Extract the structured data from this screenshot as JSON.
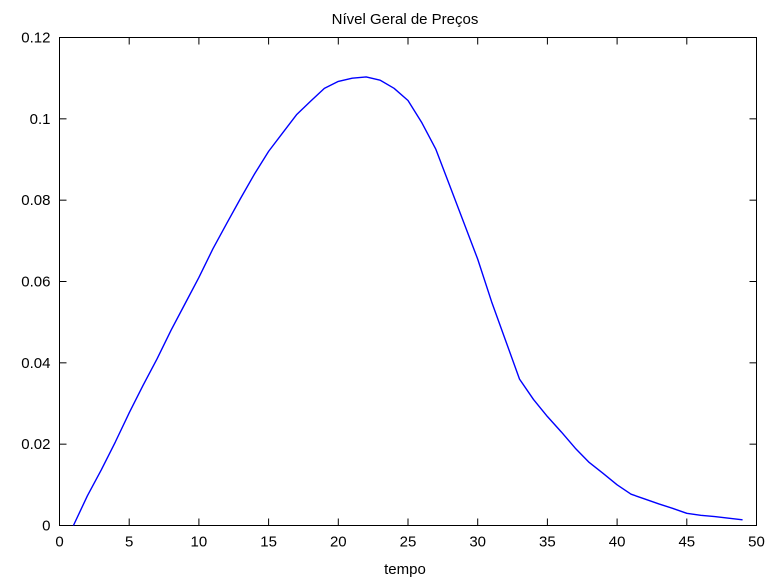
{
  "chart_data": {
    "type": "line",
    "title": "Nível Geral de Preços",
    "xlabel": "tempo",
    "ylabel": "",
    "xlim": [
      0,
      50
    ],
    "ylim": [
      0,
      0.12
    ],
    "grid": false,
    "legend": "none",
    "x_ticks": [
      0,
      5,
      10,
      15,
      20,
      25,
      30,
      35,
      40,
      45,
      50
    ],
    "x_tick_labels": [
      "0",
      "5",
      "10",
      "15",
      "20",
      "25",
      "30",
      "35",
      "40",
      "45",
      "50"
    ],
    "y_ticks": [
      0,
      0.02,
      0.04,
      0.06,
      0.08,
      0.1,
      0.12
    ],
    "y_tick_labels": [
      "0",
      "0.02",
      "0.04",
      "0.06",
      "0.08",
      "0.1",
      "0.12"
    ],
    "series": [
      {
        "color": "#0000ff",
        "x": [
          1,
          2,
          3,
          4,
          5,
          6,
          7,
          8,
          9,
          10,
          11,
          12,
          13,
          14,
          15,
          16,
          17,
          18,
          19,
          20,
          21,
          22,
          23,
          24,
          25,
          26,
          27,
          28,
          29,
          30,
          31,
          32,
          33,
          34,
          35,
          36,
          37,
          38,
          39,
          40,
          41,
          42,
          43,
          44,
          45,
          46,
          47,
          48,
          49
        ],
        "y": [
          0.0,
          0.0073,
          0.0137,
          0.0205,
          0.0277,
          0.0345,
          0.041,
          0.048,
          0.0545,
          0.061,
          0.068,
          0.0743,
          0.0805,
          0.0865,
          0.092,
          0.0965,
          0.101,
          0.1043,
          0.1075,
          0.1092,
          0.11,
          0.1103,
          0.1095,
          0.1075,
          0.1045,
          0.099,
          0.0925,
          0.0835,
          0.0745,
          0.0655,
          0.055,
          0.0455,
          0.036,
          0.031,
          0.0268,
          0.023,
          0.019,
          0.0155,
          0.0128,
          0.01,
          0.0077,
          0.0065,
          0.0053,
          0.0042,
          0.003,
          0.0025,
          0.0022,
          0.0018,
          0.0014
        ]
      }
    ]
  }
}
